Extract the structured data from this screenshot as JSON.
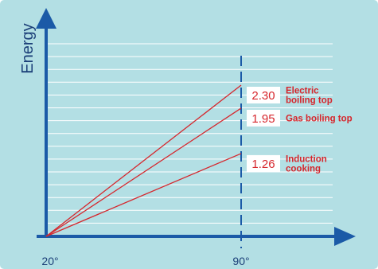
{
  "chart_data": {
    "type": "line",
    "title": "",
    "xlabel": "",
    "ylabel": "Energy",
    "x_ticks": [
      "20°",
      "90°"
    ],
    "grid": true,
    "series": [
      {
        "name": "Electric boiling top",
        "x": [
          "20°",
          "90°"
        ],
        "values": [
          0,
          2.3
        ],
        "value_label": "2.30",
        "label_lines": [
          "Electric",
          "boiling top"
        ]
      },
      {
        "name": "Gas boiling top",
        "x": [
          "20°",
          "90°"
        ],
        "values": [
          0,
          1.95
        ],
        "value_label": "1.95",
        "label_lines": [
          "Gas boiling top"
        ]
      },
      {
        "name": "Induction cooking",
        "x": [
          "20°",
          "90°"
        ],
        "values": [
          0,
          1.26
        ],
        "value_label": "1.26",
        "label_lines": [
          "Induction",
          "cooking"
        ]
      }
    ],
    "colors": {
      "background": "#b3dfe4",
      "axis": "#1b5aa7",
      "grid": "#ffffff",
      "line": "#d6262c",
      "value_box": "#ffffff"
    }
  }
}
